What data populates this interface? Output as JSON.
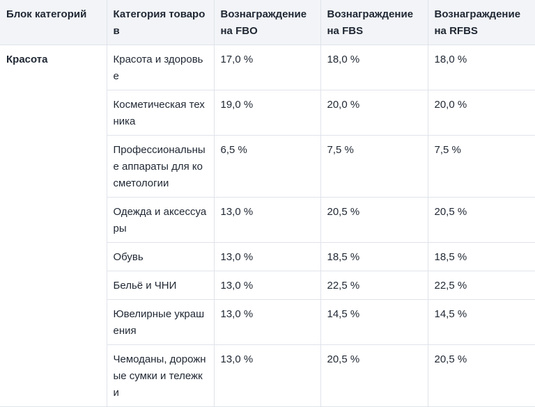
{
  "table": {
    "headers": [
      "Блок категорий",
      "Категория товаров",
      "Вознаграждение на FBO",
      "Вознаграждение на FBS",
      "Вознаграждение на RFBS"
    ],
    "block": "Красота",
    "rows": [
      {
        "category": "Красота и здоровье",
        "fbo": "17,0 %",
        "fbs": "18,0 %",
        "rfbs": "18,0 %"
      },
      {
        "category": "Косметическая техника",
        "fbo": "19,0 %",
        "fbs": "20,0 %",
        "rfbs": "20,0 %"
      },
      {
        "category": "Профессиональные аппараты для косметологии",
        "fbo": "6,5 %",
        "fbs": "7,5 %",
        "rfbs": "7,5 %"
      },
      {
        "category": "Одежда и аксессуары",
        "fbo": "13,0 %",
        "fbs": "20,5 %",
        "rfbs": "20,5 %"
      },
      {
        "category": "Обувь",
        "fbo": "13,0 %",
        "fbs": "18,5 %",
        "rfbs": "18,5 %"
      },
      {
        "category": "Бельё и ЧНИ",
        "fbo": "13,0 %",
        "fbs": "22,5 %",
        "rfbs": "22,5 %"
      },
      {
        "category": "Ювелирные украшения",
        "fbo": "13,0 %",
        "fbs": "14,5 %",
        "rfbs": "14,5 %"
      },
      {
        "category": "Чемоданы, дорожные сумки и тележки",
        "fbo": "13,0 %",
        "fbs": "20,5 %",
        "rfbs": "20,5 %"
      }
    ]
  }
}
